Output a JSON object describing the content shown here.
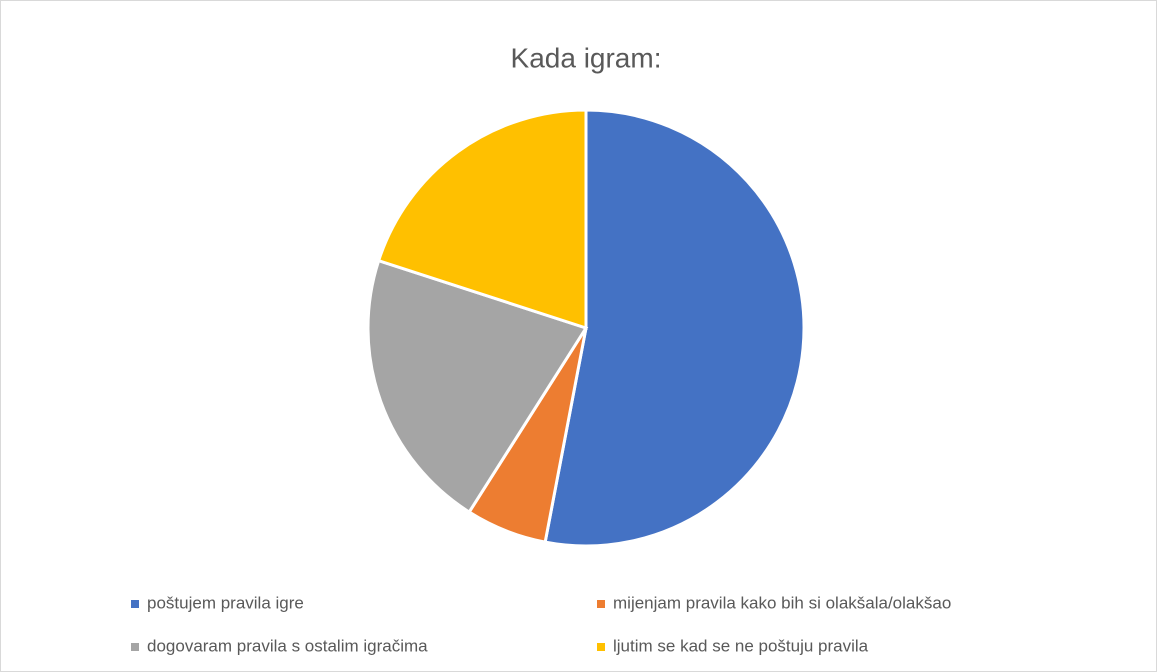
{
  "chart_data": {
    "type": "pie",
    "title": "Kada igram:",
    "categories": [
      "poštujem pravila igre",
      "mijenjam pravila kako bih si olakšala/olakšao",
      "dogovaram pravila s ostalim igračima",
      "ljutim se kad se ne poštuju pravila"
    ],
    "values": [
      53,
      6,
      21,
      20
    ],
    "colors": [
      "#4472c4",
      "#ed7d31",
      "#a5a5a5",
      "#ffc000"
    ],
    "legend": "bottom"
  }
}
